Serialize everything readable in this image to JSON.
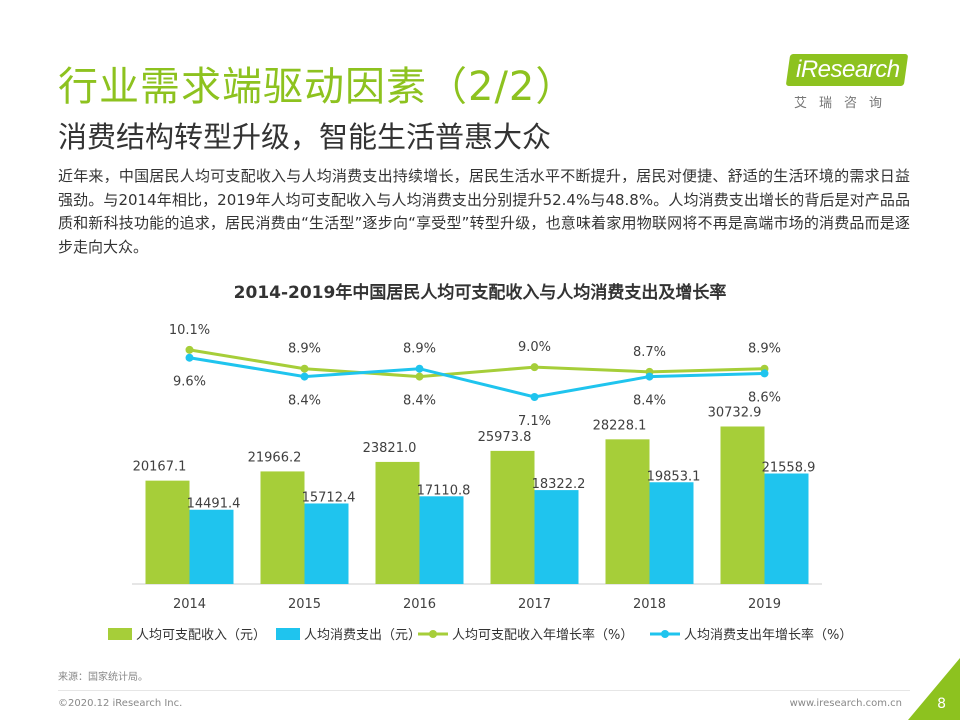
{
  "header": {
    "title": "行业需求端驱动因素（2/2）",
    "subtitle": "消费结构转型升级，智能生活普惠大众",
    "intro": "近年来，中国居民人均可支配收入与人均消费支出持续增长，居民生活水平不断提升，居民对便捷、舒适的生活环境的需求日益强劲。与2014年相比，2019年人均可支配收入与人均消费支出分别提升52.4%与48.8%。人均消费支出增长的背后是对产品品质和新科技功能的追求，居民消费由“生活型”逐步向“享受型”转型升级，也意味着家用物联网将不再是高端市场的消费品而是逐步走向大众。"
  },
  "logo": {
    "brand": "iResearch",
    "sub": "艾瑞咨询",
    "color": "#8dc21f"
  },
  "chart_data": {
    "type": "bar+line",
    "title": "2014-2019年中国居民人均可支配收入与人均消费支出及增长率",
    "categories": [
      "2014",
      "2015",
      "2016",
      "2017",
      "2018",
      "2019"
    ],
    "series": [
      {
        "name": "人均可支配收入（元）",
        "kind": "bar",
        "color": "#a6ce39",
        "values": [
          20167.1,
          21966.2,
          23821.0,
          25973.8,
          28228.1,
          30732.9
        ],
        "labels": [
          "20167.1",
          "21966.2",
          "23821.0",
          "25973.8",
          "28228.1",
          "30732.9"
        ]
      },
      {
        "name": "人均消费支出（元）",
        "kind": "bar",
        "color": "#1fc4ee",
        "values": [
          14491.4,
          15712.4,
          17110.8,
          18322.2,
          19853.1,
          21558.9
        ],
        "labels": [
          "14491.4",
          "15712.4",
          "17110.8",
          "18322.2",
          "19853.1",
          "21558.9"
        ]
      },
      {
        "name": "人均可支配收入年增长率（%）",
        "kind": "line",
        "color": "#a6ce39",
        "values": [
          10.1,
          8.9,
          8.4,
          9.0,
          8.7,
          8.9
        ],
        "labels": [
          "10.1%",
          "8.9%",
          "8.4%",
          "9.0%",
          "8.7%",
          "8.9%"
        ]
      },
      {
        "name": "人均消费支出年增长率（%）",
        "kind": "line",
        "color": "#1fc4ee",
        "values": [
          9.6,
          8.4,
          8.9,
          7.1,
          8.4,
          8.6
        ],
        "labels": [
          "9.6%",
          "8.4%",
          "8.9%",
          "7.1%",
          "8.4%",
          "8.6%"
        ]
      }
    ],
    "bar_ylim": [
      0,
      32000
    ],
    "line_ylim": [
      5,
      12
    ],
    "legend": "bottom"
  },
  "footer": {
    "source": "来源：国家统计局。",
    "copyright": "©2020.12 iResearch Inc.",
    "website": "www.iresearch.com.cn",
    "page": "8"
  }
}
